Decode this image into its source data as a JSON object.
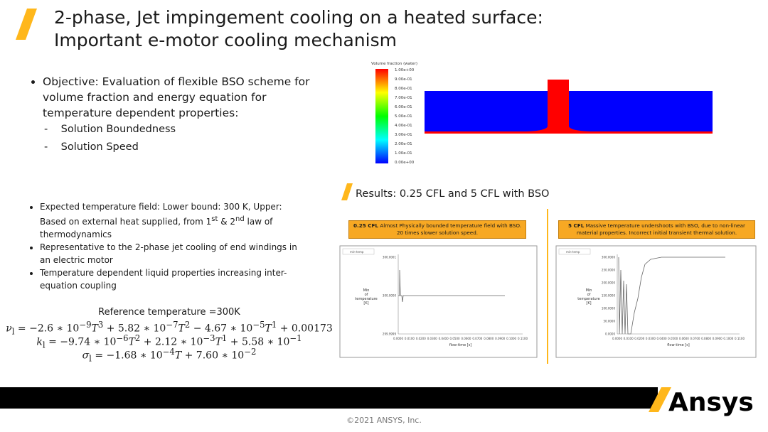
{
  "header": {
    "title_lines": [
      "2-phase, Jet impingement cooling on a heated surface:",
      "Important e-motor cooling mechanism"
    ]
  },
  "objective": {
    "text": "Objective: Evaluation of flexible BSO scheme for volume fraction and energy equation for temperature dependent properties:",
    "items": [
      "Solution Boundedness",
      "Solution Speed"
    ]
  },
  "notes": [
    [
      "Expected temperature field:  Lower bound: 300 K, Upper: Based on external heat supplied, from 1",
      {
        "sup": "st"
      },
      " & 2",
      {
        "sup": "nd"
      },
      " law of thermodynamics"
    ],
    [
      "Representative to the 2-phase jet cooling of end windings in an electric motor"
    ],
    [
      "Temperature dependent liquid properties increasing inter-equation coupling"
    ]
  ],
  "reference": {
    "title": "Reference temperature =300K",
    "equations": [
      [
        {
          "it": "ν"
        },
        {
          "sub": "l"
        },
        " = −2.6 ∗ 10",
        {
          "sup": "−9"
        },
        {
          "it": "T"
        },
        {
          "sup": "3"
        },
        " + 5.82 ∗ 10",
        {
          "sup": "−7"
        },
        {
          "it": "T"
        },
        {
          "sup": "2"
        },
        " − 4.67 ∗ 10",
        {
          "sup": "−5"
        },
        {
          "it": "T"
        },
        {
          "sup": "1"
        },
        " + 0.00173"
      ],
      [
        {
          "it": "k"
        },
        {
          "sub": "l"
        },
        " = −9.74 ∗ 10",
        {
          "sup": "−6"
        },
        {
          "it": "T"
        },
        {
          "sup": "2"
        },
        " + 2.12 ∗ 10",
        {
          "sup": "−3"
        },
        {
          "it": "T"
        },
        {
          "sup": "1"
        },
        " + 5.58 ∗ 10",
        {
          "sup": "−1"
        }
      ],
      [
        {
          "it": "σ"
        },
        {
          "sub": "l"
        },
        " = −1.68 ∗ 10",
        {
          "sup": "−4"
        },
        {
          "it": "T"
        },
        " + 7.60 ∗ 10",
        {
          "sup": "−2"
        }
      ]
    ]
  },
  "contour": {
    "legend_title": "Volume fraction (water)",
    "legend_labels": [
      "1.00e+00",
      "9.00e-01",
      "8.00e-01",
      "7.00e-01",
      "6.00e-01",
      "5.00e-01",
      "4.00e-01",
      "3.00e-01",
      "2.00e-01",
      "1.00e-01",
      "0.00e+00"
    ]
  },
  "results": {
    "title": "Results: 0.25 CFL and 5 CFL with BSO",
    "panels": [
      {
        "highlight": "0.25 CFL",
        "caption": "Almost Physically bounded temperature field with BSO. 20 times slower solution speed.",
        "plot": {
          "legend": "min-temp",
          "y_label": [
            "Min",
            "of",
            "temperature",
            "[K]"
          ],
          "x_label": "flow-time [s]",
          "yticks": [
            "300.0001",
            "300.0000",
            "299.9999"
          ],
          "xticks": [
            "0.0000",
            "0.0100",
            "0.0200",
            "0.0300",
            "0.0400",
            "0.0500",
            "0.0600",
            "0.0700",
            "0.0800",
            "0.0900",
            "0.1000",
            "0.1100"
          ]
        }
      },
      {
        "highlight": "5 CFL",
        "caption": "Massive temperature undershoots with BSO, due to non-linear material properties. Incorrect initial transient thermal solution.",
        "plot": {
          "legend": "min-temp",
          "y_label": [
            "Min",
            "of",
            "temperature",
            "[K]"
          ],
          "x_label": "flow-time [s]",
          "yticks": [
            "300.0000",
            "250.0000",
            "200.0000",
            "150.0000",
            "100.0000",
            "50.0000",
            "0.0000"
          ],
          "xticks": [
            "0.0000",
            "0.0100",
            "0.0200",
            "0.0300",
            "0.0400",
            "0.0500",
            "0.0600",
            "0.0700",
            "0.0800",
            "0.0900",
            "0.1000",
            "0.1100"
          ]
        }
      }
    ]
  },
  "footer": {
    "logo": "Ansys",
    "copyright": "©2021 ANSYS, Inc."
  }
}
